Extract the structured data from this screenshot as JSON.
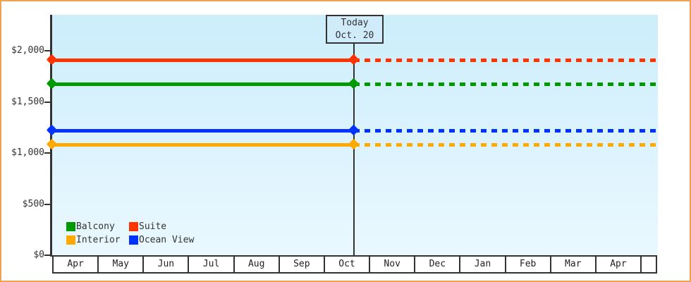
{
  "window": {
    "background": "#ffffff",
    "border_color": "#efa351"
  },
  "chart_data": {
    "type": "line",
    "x_months": [
      "Apr",
      "May",
      "Jun",
      "Jul",
      "Aug",
      "Sep",
      "Oct",
      "Nov",
      "Dec",
      "Jan",
      "Feb",
      "Mar",
      "Apr"
    ],
    "y_ticks": [
      {
        "label": "$0",
        "value": 0
      },
      {
        "label": "$500",
        "value": 500
      },
      {
        "label": "$1,000",
        "value": 1000
      },
      {
        "label": "$1,500",
        "value": 1500
      },
      {
        "label": "$2,000",
        "value": 2000
      }
    ],
    "ylim": [
      0,
      2000
    ],
    "grid": false,
    "series": [
      {
        "name": "Suite",
        "color": "#ff3300",
        "value": 1910
      },
      {
        "name": "Balcony",
        "color": "#009900",
        "value": 1675
      },
      {
        "name": "Ocean View",
        "color": "#0033ff",
        "value": 1220
      },
      {
        "name": "Interior",
        "color": "#ffaa00",
        "value": 1080
      }
    ],
    "past_style": "solid",
    "future_style": "dashed",
    "today": {
      "line1": "Today",
      "line2": "Oct. 20",
      "month_index": 6,
      "day_fraction": 0.645
    },
    "legend": {
      "position": "bottom-left",
      "rows": [
        [
          "Balcony",
          "Suite"
        ],
        [
          "Interior",
          "Ocean View"
        ]
      ]
    },
    "colors": {
      "axis": "#333333",
      "plot_bg_top": "#cceefb",
      "plot_bg_bottom": "#eaf8ff",
      "today_box_bg": "#d0ebfa"
    }
  }
}
